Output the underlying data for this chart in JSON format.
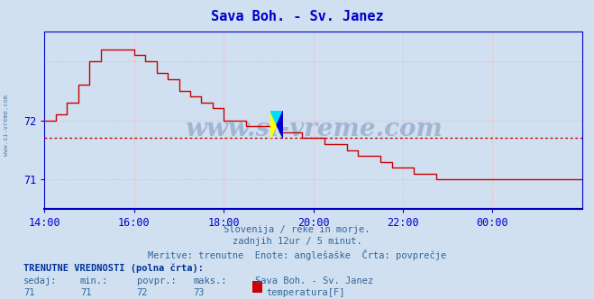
{
  "title": "Sava Boh. - Sv. Janez",
  "title_color": "#0000cc",
  "bg_color": "#d0e0f0",
  "plot_bg_color": "#d0e0f0",
  "line_color": "#cc0000",
  "avg_line_color": "#cc0000",
  "avg_line_value": 71.7,
  "yticks": [
    71,
    72
  ],
  "ylim": [
    70.5,
    73.5
  ],
  "xlim": [
    0,
    144
  ],
  "xtick_labels": [
    "14:00",
    "16:00",
    "18:00",
    "20:00",
    "22:00",
    "00:00"
  ],
  "xtick_positions": [
    0,
    24,
    48,
    72,
    96,
    120
  ],
  "grid_color": "#ffaaaa",
  "axis_color": "#0000cc",
  "watermark": "www.si-vreme.com",
  "watermark_color": "#1a3a7a",
  "watermark_alpha": 0.25,
  "sub_text1": "Slovenija / reke in morje.",
  "sub_text2": "zadnjih 12ur / 5 minut.",
  "sub_text3": "Meritve: trenutne  Enote: anglešaške  Črta: povprečje",
  "sub_text_color": "#336699",
  "bottom_label": "TRENUTNE VREDNOSTI (polna črta):",
  "bottom_label_color": "#003399",
  "row_labels": [
    "sedaj:",
    "min.:",
    "povpr.:",
    "maks.:",
    "Sava Boh. - Sv. Janez"
  ],
  "row_values": [
    "71",
    "71",
    "72",
    "73",
    "temperatura[F]"
  ],
  "legend_color": "#cc0000",
  "sidebar_text": "www.si-vreme.com",
  "sidebar_color": "#336699",
  "step_x": [
    0,
    3,
    6,
    9,
    12,
    15,
    18,
    21,
    24,
    27,
    30,
    33,
    36,
    39,
    42,
    45,
    48,
    51,
    54,
    57,
    60,
    63,
    66,
    69,
    72,
    75,
    78,
    81,
    84,
    87,
    90,
    93,
    96,
    99,
    102,
    105,
    108,
    111,
    114,
    117,
    120,
    123,
    126,
    129,
    132,
    135,
    138,
    141,
    144
  ],
  "step_y": [
    72.0,
    72.1,
    72.3,
    72.6,
    73.0,
    73.2,
    73.2,
    73.2,
    73.1,
    73.0,
    72.8,
    72.7,
    72.5,
    72.4,
    72.3,
    72.2,
    72.0,
    72.0,
    71.9,
    71.9,
    71.9,
    71.8,
    71.8,
    71.7,
    71.7,
    71.6,
    71.6,
    71.5,
    71.4,
    71.4,
    71.3,
    71.2,
    71.2,
    71.1,
    71.1,
    71.0,
    71.0,
    71.0,
    71.0,
    71.0,
    71.0,
    71.0,
    71.0,
    71.0,
    71.0,
    71.0,
    71.0,
    71.0,
    71.0
  ]
}
